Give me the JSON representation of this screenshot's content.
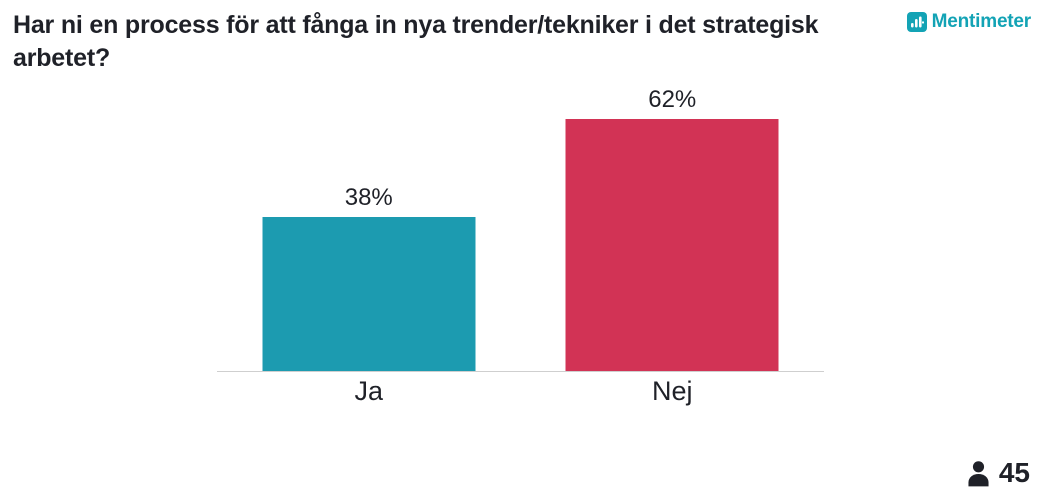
{
  "header": {
    "title": "Har ni en process för att fånga in nya trender/tekniker i det strategisk arbetet?",
    "brand": "Mentimeter"
  },
  "chart_data": {
    "type": "bar",
    "title": "Har ni en process för att fånga in nya trender/tekniker i det strategisk arbetet?",
    "categories": [
      "Ja",
      "Nej"
    ],
    "values": [
      38,
      62
    ],
    "value_labels": [
      "38%",
      "62%"
    ],
    "bar_colors": [
      "#1C9BB0",
      "#D23355"
    ],
    "xlabel": "",
    "ylabel": "",
    "ylim": [
      0,
      62
    ],
    "grid": false,
    "legend": "none",
    "value_unit": "%"
  },
  "footer": {
    "participants_count": "45"
  },
  "colors": {
    "bar_teal": "#1C9BB0",
    "bar_red": "#D23355",
    "brand_teal": "#13A3B5",
    "axis_line": "#CFCFCF",
    "text_dark": "#1F2128"
  },
  "icons": {
    "brand_icon": "mentimeter-bar-chart-icon",
    "participants_icon": "person-icon"
  }
}
